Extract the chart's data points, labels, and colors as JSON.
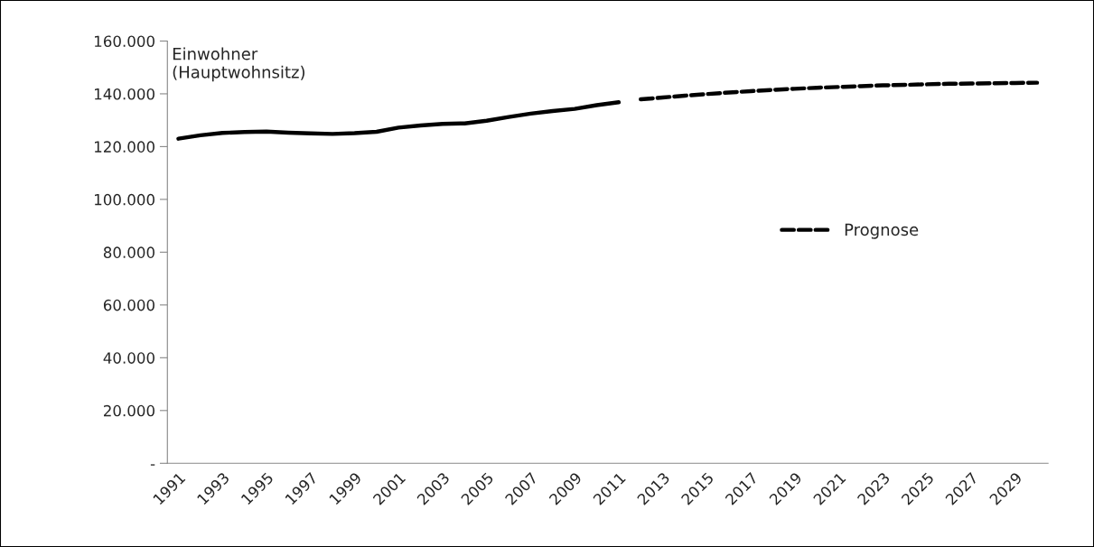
{
  "chart_data": {
    "type": "line",
    "categories": [
      "1991",
      null,
      "1993",
      null,
      "1995",
      null,
      "1997",
      null,
      "1999",
      null,
      "2001",
      null,
      "2003",
      null,
      "2005",
      null,
      "2007",
      null,
      "2009",
      null,
      "2011",
      null,
      "2013",
      null,
      "2015",
      null,
      "2017",
      null,
      "2019",
      null,
      "2021",
      null,
      "2023",
      null,
      "2025",
      null,
      "2027",
      null,
      "2029",
      null
    ],
    "series": [
      {
        "color": "#000000",
        "line_style": "solid",
        "values": [
          123000,
          124300,
          125200,
          125500,
          125700,
          125300,
          125000,
          124800,
          125100,
          125600,
          127200,
          128000,
          128600,
          128800,
          129800,
          131200,
          132500,
          133500,
          134300,
          135700,
          136800,
          null,
          null,
          null,
          null,
          null,
          null,
          null,
          null,
          null,
          null,
          null,
          null,
          null,
          null,
          null,
          null,
          null,
          null,
          null
        ]
      },
      {
        "name": "Prognose",
        "color": "#000000",
        "line_style": "dashed",
        "values": [
          null,
          null,
          null,
          null,
          null,
          null,
          null,
          null,
          null,
          null,
          null,
          null,
          null,
          null,
          null,
          null,
          null,
          null,
          null,
          null,
          null,
          137900,
          138600,
          139300,
          139900,
          140500,
          141000,
          141500,
          141900,
          142300,
          142600,
          142900,
          143200,
          143400,
          143600,
          143800,
          143900,
          144000,
          144100,
          144200
        ]
      }
    ],
    "ylim": [
      0,
      160000
    ],
    "yticks": [
      {
        "value": 0,
        "label": "-"
      },
      {
        "value": 20000,
        "label": "20.000"
      },
      {
        "value": 40000,
        "label": "40.000"
      },
      {
        "value": 60000,
        "label": "60.000"
      },
      {
        "value": 80000,
        "label": "80.000"
      },
      {
        "value": 100000,
        "label": "100.000"
      },
      {
        "value": 120000,
        "label": "120.000"
      },
      {
        "value": 140000,
        "label": "140.000"
      },
      {
        "value": 160000,
        "label": "160.000"
      }
    ],
    "annotations": [
      "Einwohner\n(Hauptwohnsitz)"
    ],
    "legend": "right",
    "grid": false,
    "marker": "none"
  }
}
